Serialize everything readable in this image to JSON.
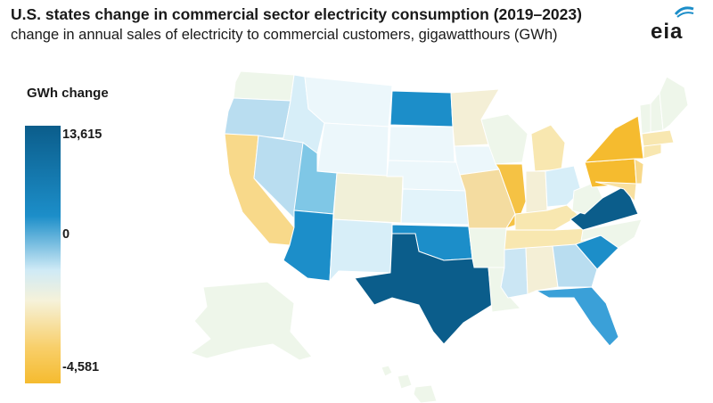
{
  "header": {
    "title": "U.S. states change in commercial sector electricity consumption (2019–2023)",
    "subtitle": "change in annual sales of electricity to commercial customers, gigawatthours (GWh)",
    "logo_text": "eia"
  },
  "legend": {
    "title": "GWh change",
    "max_label": "13,615",
    "zero_label": "0",
    "min_label": "-4,581",
    "colors": {
      "max": "#0b5d8b",
      "high": "#1c8ec9",
      "zero": "#eef7ee",
      "low": "#f8cf6a",
      "min": "#f5bb2f"
    }
  },
  "map_data": {
    "value_range": [
      -4581,
      13615
    ],
    "states": [
      {
        "state": "TX",
        "color": "#0b5d8b"
      },
      {
        "state": "VA",
        "color": "#0b5d8b"
      },
      {
        "state": "ND",
        "color": "#1c8ec9"
      },
      {
        "state": "AZ",
        "color": "#1c8ec9"
      },
      {
        "state": "OK",
        "color": "#1c8ec9"
      },
      {
        "state": "SC",
        "color": "#1c8ec9"
      },
      {
        "state": "FL",
        "color": "#3aa0d8"
      },
      {
        "state": "UT",
        "color": "#7fc7e6"
      },
      {
        "state": "OR",
        "color": "#b9ddf0"
      },
      {
        "state": "NV",
        "color": "#b9ddf0"
      },
      {
        "state": "GA",
        "color": "#b9ddf0"
      },
      {
        "state": "MS",
        "color": "#cbe6f4"
      },
      {
        "state": "ID",
        "color": "#d7eef8"
      },
      {
        "state": "NM",
        "color": "#d7eef8"
      },
      {
        "state": "OH",
        "color": "#d7eef8"
      },
      {
        "state": "KS",
        "color": "#e2f3fa"
      },
      {
        "state": "MT",
        "color": "#ecf7fb"
      },
      {
        "state": "WY",
        "color": "#ecf7fb"
      },
      {
        "state": "SD",
        "color": "#ecf7fb"
      },
      {
        "state": "NE",
        "color": "#ecf7fb"
      },
      {
        "state": "IA",
        "color": "#ecf7fb"
      },
      {
        "state": "WA",
        "color": "#eef6ea"
      },
      {
        "state": "CO",
        "color": "#f1f0d8"
      },
      {
        "state": "MN",
        "color": "#f4efd6"
      },
      {
        "state": "WI",
        "color": "#eef6ea"
      },
      {
        "state": "AR",
        "color": "#eef6ea"
      },
      {
        "state": "LA",
        "color": "#eef6ea"
      },
      {
        "state": "AL",
        "color": "#f4efd6"
      },
      {
        "state": "IN",
        "color": "#f4efd6"
      },
      {
        "state": "WV",
        "color": "#eef6ea"
      },
      {
        "state": "NC",
        "color": "#eef6ea"
      },
      {
        "state": "AK",
        "color": "#eef6ea"
      },
      {
        "state": "HI",
        "color": "#eef6ea"
      },
      {
        "state": "MI",
        "color": "#f8e7b0"
      },
      {
        "state": "KY",
        "color": "#f8e7b0"
      },
      {
        "state": "TN",
        "color": "#f8e7b0"
      },
      {
        "state": "MO",
        "color": "#f4dca0"
      },
      {
        "state": "CA",
        "color": "#f8d98a"
      },
      {
        "state": "IL",
        "color": "#f5c244"
      },
      {
        "state": "NY",
        "color": "#f5bb2f"
      },
      {
        "state": "PA",
        "color": "#f5bb2f"
      },
      {
        "state": "NJ",
        "color": "#f8d98a"
      },
      {
        "state": "MD",
        "color": "#f8e0a0"
      },
      {
        "state": "ME",
        "color": "#eef6ea"
      },
      {
        "state": "NH",
        "color": "#eef6ea"
      },
      {
        "state": "VT",
        "color": "#eef6ea"
      },
      {
        "state": "MA",
        "color": "#f8e7b0"
      },
      {
        "state": "CT",
        "color": "#f8e7b0"
      }
    ]
  }
}
